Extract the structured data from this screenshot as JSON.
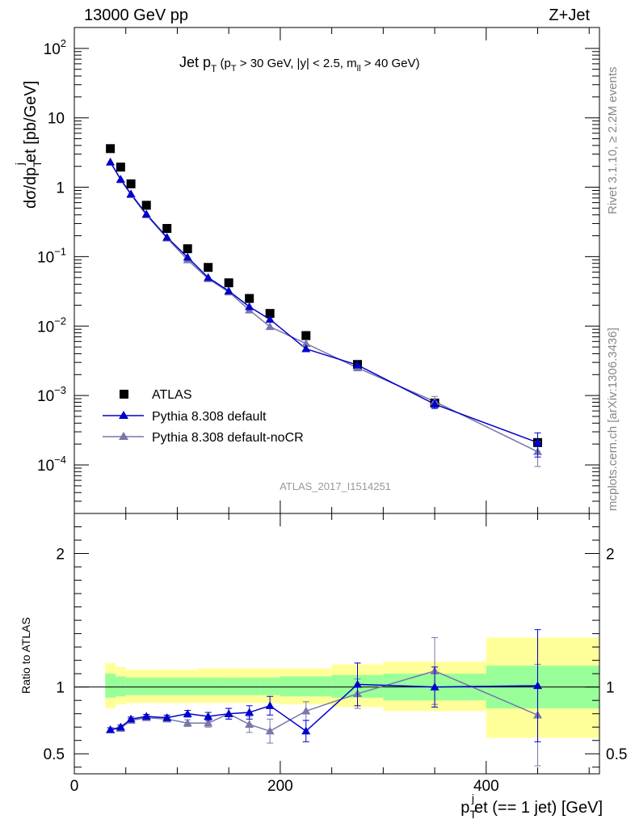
{
  "header": {
    "left": "13000 GeV pp",
    "right": "Z+Jet"
  },
  "side_text": {
    "rivet": "Rivet 3.1.10, ≥ 2.2M events",
    "mcplots": "mcplots.cern.ch [arXiv:1306.3436]"
  },
  "analysis_id": "ATLAS_2017_I1514251",
  "colors": {
    "data": "#000000",
    "default": "#0000cc",
    "nocr": "#7777aa",
    "band_green": "#99ff99",
    "band_yellow": "#ffff99"
  },
  "chart_data": [
    {
      "panel": "main",
      "type": "scatter",
      "title": "Jet pT (pT > 30 GeV, |y| < 2.5, mll > 40 GeV)",
      "title_parts": {
        "main": "Jet p",
        "sub": "T",
        "rest_1": " (p",
        "sub_1": "T",
        "rest_2": " > 30 GeV, |y| < 2.5, m",
        "sub_2": "ll",
        "rest_3": " > 40 GeV)"
      },
      "ylabel": "dσ/dp_T^j et [pb/GeV]",
      "ylabel_parts": {
        "a": "dσ/dp",
        "sub": "T",
        "sup": "j",
        "b": "et [pb/GeV]"
      },
      "yscale": "log",
      "xlim": [
        0,
        510
      ],
      "ylim": [
        2e-05,
        200
      ],
      "yticks": [
        {
          "value": 0.0001,
          "base": "10",
          "exp": "−4"
        },
        {
          "value": 0.001,
          "base": "10",
          "exp": "−3"
        },
        {
          "value": 0.01,
          "base": "10",
          "exp": "−2"
        },
        {
          "value": 0.1,
          "base": "10",
          "exp": "−1"
        },
        {
          "value": 1,
          "base": "1",
          "exp": ""
        },
        {
          "value": 10,
          "base": "10",
          "exp": ""
        },
        {
          "value": 100,
          "base": "10",
          "exp": "2"
        }
      ],
      "legend_position": "lower-left",
      "series": [
        {
          "name": "ATLAS",
          "marker": "square",
          "x": [
            35,
            45,
            55,
            70,
            90,
            110,
            130,
            150,
            170,
            190,
            225,
            275,
            350,
            450
          ],
          "y": [
            3.6,
            1.95,
            1.12,
            0.55,
            0.255,
            0.13,
            0.07,
            0.042,
            0.025,
            0.0152,
            0.0073,
            0.0028,
            0.00078,
            0.00021
          ]
        },
        {
          "name": "Pythia 8.308 default",
          "marker": "triangle",
          "x": [
            35,
            45,
            55,
            70,
            90,
            110,
            130,
            150,
            170,
            190,
            225,
            275,
            350,
            450
          ],
          "y": [
            2.3,
            1.3,
            0.8,
            0.41,
            0.19,
            0.098,
            0.05,
            0.032,
            0.019,
            0.0125,
            0.0047,
            0.00275,
            0.00075,
            0.00021
          ],
          "yerr": [
            0,
            0,
            0,
            0,
            0,
            0,
            0,
            0,
            0,
            0,
            0,
            0,
            0.0001,
            8e-05
          ]
        },
        {
          "name": "Pythia 8.308 default-noCR",
          "marker": "triangle",
          "x": [
            35,
            45,
            55,
            70,
            90,
            110,
            130,
            150,
            170,
            190,
            225,
            275,
            350,
            450
          ],
          "y": [
            2.3,
            1.28,
            0.78,
            0.4,
            0.185,
            0.09,
            0.048,
            0.031,
            0.017,
            0.0098,
            0.0056,
            0.0025,
            0.00082,
            0.000155
          ],
          "yerr": [
            0,
            0,
            0,
            0,
            0,
            0,
            0,
            0,
            0,
            0,
            0,
            0,
            0.00015,
            6e-05
          ]
        }
      ]
    },
    {
      "panel": "ratio",
      "type": "line",
      "ylabel": "Ratio to ATLAS",
      "xlabel": "p_T^j et (== 1 jet) [GeV]",
      "xlabel_parts": {
        "a": "p",
        "sub": "T",
        "sup": "j",
        "b": "et (== 1 jet) [GeV]"
      },
      "xlim": [
        0,
        510
      ],
      "ylim": [
        0.35,
        2.3
      ],
      "yticks": [
        0.5,
        1,
        2
      ],
      "ytick_labels": [
        "0.5",
        "1",
        "2"
      ],
      "xticks": [
        0,
        200,
        400
      ],
      "xtick_labels": [
        "0",
        "200",
        "400"
      ],
      "bands": [
        {
          "x0": 30,
          "x1": 40,
          "g": [
            0.92,
            1.1
          ],
          "y": [
            0.84,
            1.18
          ]
        },
        {
          "x0": 40,
          "x1": 50,
          "g": [
            0.93,
            1.08
          ],
          "y": [
            0.87,
            1.15
          ]
        },
        {
          "x0": 50,
          "x1": 60,
          "g": [
            0.94,
            1.07
          ],
          "y": [
            0.88,
            1.13
          ]
        },
        {
          "x0": 60,
          "x1": 80,
          "g": [
            0.94,
            1.07
          ],
          "y": [
            0.88,
            1.13
          ]
        },
        {
          "x0": 80,
          "x1": 100,
          "g": [
            0.94,
            1.07
          ],
          "y": [
            0.88,
            1.13
          ]
        },
        {
          "x0": 100,
          "x1": 120,
          "g": [
            0.94,
            1.07
          ],
          "y": [
            0.88,
            1.13
          ]
        },
        {
          "x0": 120,
          "x1": 140,
          "g": [
            0.94,
            1.07
          ],
          "y": [
            0.88,
            1.14
          ]
        },
        {
          "x0": 140,
          "x1": 160,
          "g": [
            0.94,
            1.07
          ],
          "y": [
            0.88,
            1.14
          ]
        },
        {
          "x0": 160,
          "x1": 180,
          "g": [
            0.94,
            1.07
          ],
          "y": [
            0.88,
            1.14
          ]
        },
        {
          "x0": 180,
          "x1": 200,
          "g": [
            0.94,
            1.07
          ],
          "y": [
            0.88,
            1.14
          ]
        },
        {
          "x0": 200,
          "x1": 250,
          "g": [
            0.93,
            1.08
          ],
          "y": [
            0.87,
            1.14
          ]
        },
        {
          "x0": 250,
          "x1": 300,
          "g": [
            0.92,
            1.09
          ],
          "y": [
            0.85,
            1.17
          ]
        },
        {
          "x0": 300,
          "x1": 400,
          "g": [
            0.9,
            1.1
          ],
          "y": [
            0.82,
            1.19
          ]
        },
        {
          "x0": 400,
          "x1": 510,
          "g": [
            0.84,
            1.16
          ],
          "y": [
            0.62,
            1.37
          ]
        }
      ],
      "series": [
        {
          "name": "Pythia 8.308 default",
          "x": [
            35,
            45,
            55,
            70,
            90,
            110,
            130,
            150,
            170,
            190,
            225,
            275,
            350,
            450
          ],
          "y": [
            0.68,
            0.7,
            0.76,
            0.78,
            0.77,
            0.8,
            0.78,
            0.8,
            0.81,
            0.86,
            0.67,
            1.02,
            1.0,
            1.01
          ],
          "yerr": [
            0.015,
            0.015,
            0.015,
            0.015,
            0.02,
            0.025,
            0.03,
            0.04,
            0.05,
            0.07,
            0.08,
            0.16,
            0.15,
            0.42
          ]
        },
        {
          "name": "Pythia 8.308 default-noCR",
          "x": [
            35,
            45,
            55,
            70,
            90,
            110,
            130,
            150,
            170,
            190,
            225,
            275,
            350,
            450
          ],
          "y": [
            0.68,
            0.69,
            0.75,
            0.77,
            0.76,
            0.73,
            0.73,
            0.8,
            0.72,
            0.67,
            0.82,
            0.95,
            1.12,
            0.79
          ],
          "yerr": [
            0.015,
            0.015,
            0.015,
            0.015,
            0.02,
            0.025,
            0.03,
            0.04,
            0.06,
            0.09,
            0.07,
            0.11,
            0.25,
            0.38
          ]
        }
      ]
    }
  ]
}
